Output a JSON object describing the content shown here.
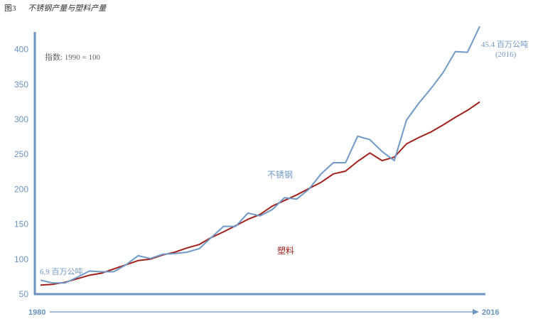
{
  "figure": {
    "label": "图3",
    "title": "不锈钢产量与塑料产量"
  },
  "chart_data": {
    "type": "line",
    "index_note": "指数: 1990 = 100",
    "x_start_label": "1980",
    "x_end_label": "2016",
    "xlim": [
      1980,
      2016
    ],
    "ylim": [
      50,
      420
    ],
    "yticks": [
      50,
      100,
      150,
      200,
      250,
      300,
      350,
      400
    ],
    "colors": {
      "axis": "#6b95bf",
      "stainless": "#6f9ac7",
      "plastics": "#a3201a",
      "note": "#666666"
    },
    "series": [
      {
        "name": "不锈钢",
        "color": "#6f9ac7",
        "x": [
          1980,
          1981,
          1982,
          1983,
          1984,
          1985,
          1986,
          1987,
          1988,
          1989,
          1990,
          1991,
          1992,
          1993,
          1994,
          1995,
          1996,
          1997,
          1998,
          1999,
          2000,
          2001,
          2002,
          2003,
          2004,
          2005,
          2006,
          2007,
          2008,
          2009,
          2010,
          2011,
          2012,
          2013,
          2014,
          2015,
          2016
        ],
        "y": [
          70,
          66,
          66,
          74,
          83,
          82,
          82,
          92,
          105,
          101,
          107,
          108,
          110,
          115,
          131,
          147,
          147,
          166,
          162,
          171,
          188,
          186,
          200,
          222,
          238,
          238,
          276,
          271,
          254,
          241,
          299,
          323,
          344,
          367,
          397,
          396,
          433
        ]
      },
      {
        "name": "塑料",
        "color": "#a3201a",
        "x": [
          1980,
          1981,
          1982,
          1983,
          1984,
          1985,
          1986,
          1987,
          1988,
          1989,
          1990,
          1991,
          1992,
          1993,
          1994,
          1995,
          1996,
          1997,
          1998,
          1999,
          2000,
          2001,
          2002,
          2003,
          2004,
          2005,
          2006,
          2007,
          2008,
          2009,
          2010,
          2011,
          2012,
          2013,
          2014,
          2015,
          2016
        ],
        "y": [
          63,
          64,
          67,
          72,
          77,
          80,
          86,
          92,
          98,
          100,
          106,
          110,
          116,
          121,
          131,
          139,
          148,
          157,
          164,
          176,
          184,
          192,
          201,
          210,
          222,
          226,
          240,
          252,
          241,
          246,
          265,
          274,
          282,
          292,
          303,
          313,
          325
        ]
      }
    ],
    "annotations": {
      "start": "6.9 百万公吨",
      "end_value": "45.4 百万公吨",
      "end_year": "(2016)",
      "stainless_label": "不锈钢",
      "plastics_label": "塑料"
    }
  }
}
